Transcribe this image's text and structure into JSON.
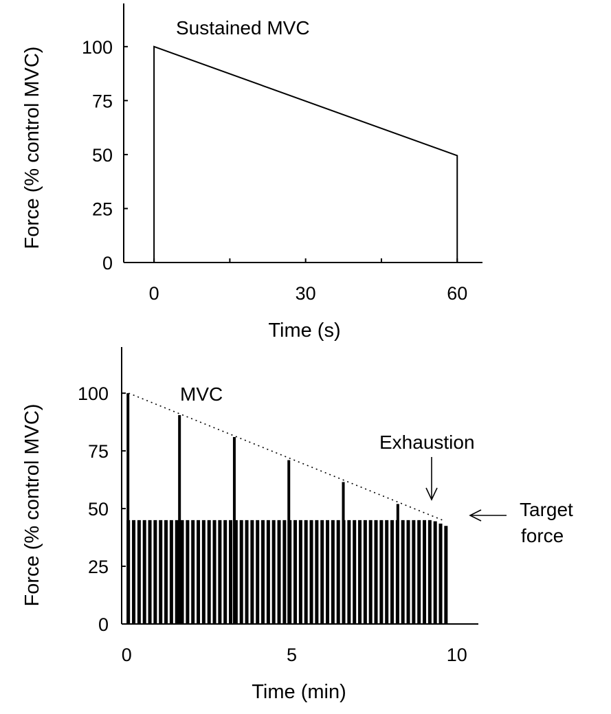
{
  "chart_data": [
    {
      "type": "line",
      "annotation": "Sustained MVC",
      "xlabel": "Time (s)",
      "ylabel": "Force (% control MVC)",
      "xlim": [
        -6,
        65
      ],
      "ylim": [
        0,
        120
      ],
      "xticks": [
        0,
        30,
        60
      ],
      "yticks": [
        0,
        25,
        50,
        75,
        100
      ],
      "series": [
        {
          "x": [
            0,
            0,
            60,
            60
          ],
          "y": [
            0,
            100,
            49.5,
            0
          ]
        }
      ]
    },
    {
      "type": "bar",
      "annotations": {
        "mvc": "MVC",
        "exhaustion": "Exhaustion",
        "target_line1": "Target",
        "target_line2": "force"
      },
      "xlabel": "Time (min)",
      "ylabel": "Force (% control MVC)",
      "xlim": [
        -0.15,
        10.65
      ],
      "ylim": [
        0,
        120
      ],
      "xticks": [
        0,
        5,
        10
      ],
      "yticks": [
        0,
        25,
        50,
        75,
        100
      ],
      "target_force": 45,
      "target_contraction_count": 60,
      "target_contraction_interval_min": 0.163,
      "final_target_forces": [
        44.5,
        43.5,
        42.5
      ],
      "mvc_contractions": [
        {
          "time": 0.0,
          "force": 100
        },
        {
          "time": 1.56,
          "force": 90.5
        },
        {
          "time": 3.22,
          "force": 81
        },
        {
          "time": 4.87,
          "force": 71
        },
        {
          "time": 6.52,
          "force": 61.5
        },
        {
          "time": 8.17,
          "force": 52
        }
      ],
      "mvc_trend": {
        "x": [
          0,
          9.65
        ],
        "y": [
          100,
          44.5
        ]
      },
      "exhaustion_time": 9.45
    }
  ]
}
